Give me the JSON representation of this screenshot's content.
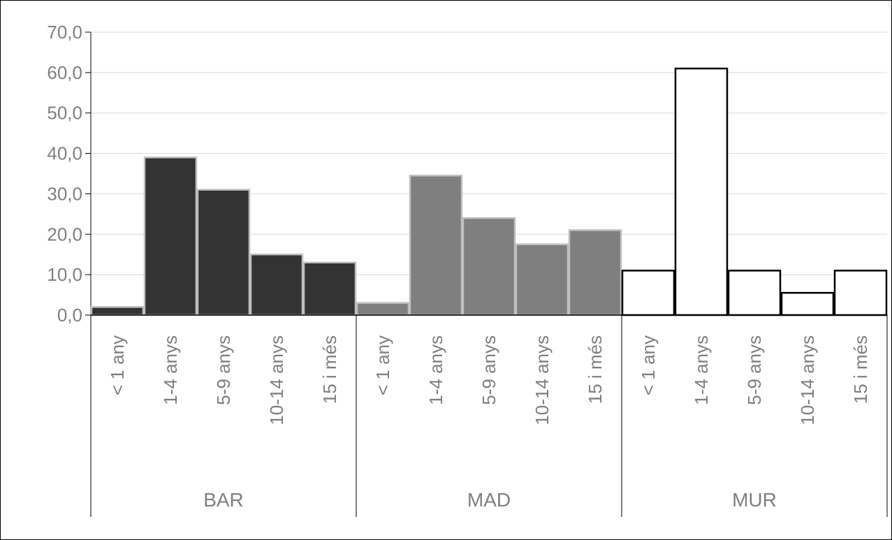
{
  "chart_data": {
    "type": "bar",
    "title": "",
    "xlabel": "",
    "ylabel": "",
    "ylim": [
      0,
      70
    ],
    "y_ticks": [
      "0,0",
      "10,0",
      "20,0",
      "30,0",
      "40,0",
      "50,0",
      "60,0",
      "70,0"
    ],
    "grid": true,
    "legend": "none",
    "categories": [
      "< 1 any",
      "1-4 anys",
      "5-9 anys",
      "10-14 anys",
      "15 i més"
    ],
    "groups": [
      {
        "label": "BAR",
        "color": "#333333",
        "edge": "#bfbfbf",
        "values": [
          2,
          39,
          31,
          15,
          13
        ]
      },
      {
        "label": "MAD",
        "color": "#7f7f7f",
        "edge": "#bfbfbf",
        "values": [
          3,
          34.5,
          24,
          17.5,
          21
        ]
      },
      {
        "label": "MUR",
        "color": "#ffffff",
        "edge": "#000000",
        "values": [
          11,
          61,
          11,
          5.5,
          11
        ]
      }
    ]
  }
}
